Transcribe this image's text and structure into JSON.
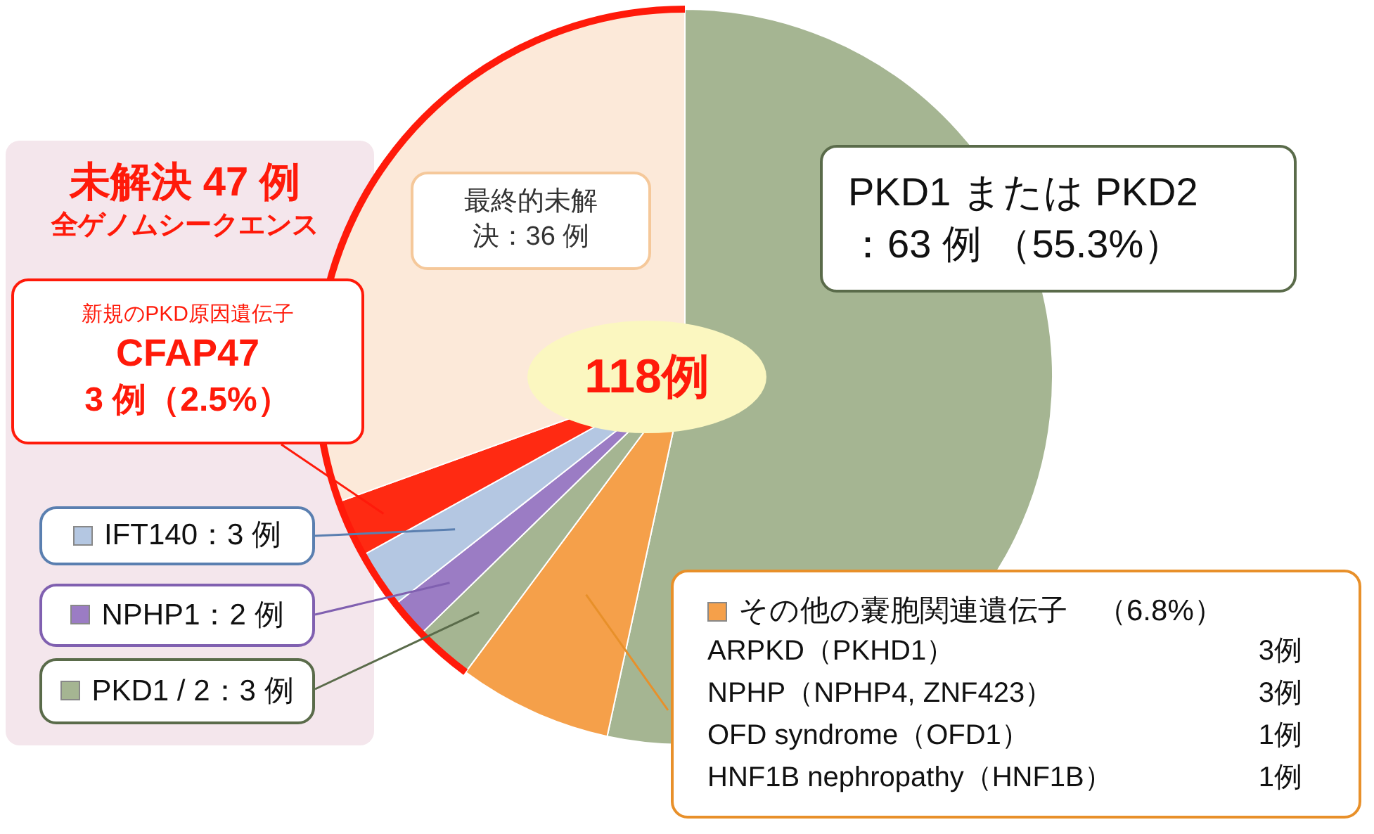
{
  "chart_data": {
    "type": "pie",
    "categories": [
      "PKD1 または PKD2\n：63 例 （55.3%）",
      "その他の嚢胞関連遺伝子　（6.8%）",
      "PKD1 / 2：3 例",
      "NPHP1：2 例",
      "IFT140：3 例",
      "新規のPKD原因遺伝子\nCFAP47\n3 例（2.5%）",
      "最終的未解決：36 例"
    ],
    "values": [
      63,
      8,
      3,
      2,
      3,
      3,
      36
    ],
    "colors": [
      "#a5b592",
      "#f5a04a",
      "#a5b592",
      "#9b7cc4",
      "#b4c7e2",
      "#ff2a12",
      "#fce9d9"
    ],
    "annotations": [
      "118例",
      "未解決 47 例",
      "全ゲノムシークエンス",
      "ARPKD（PKHD1）",
      "3例",
      "NPHP（NPHP4, ZNF423）",
      "3例",
      "OFD syndrome（OFD1）",
      "1例",
      "HNF1B nephropathy（HNF1B）",
      "1例"
    ],
    "legend": "left"
  }
}
